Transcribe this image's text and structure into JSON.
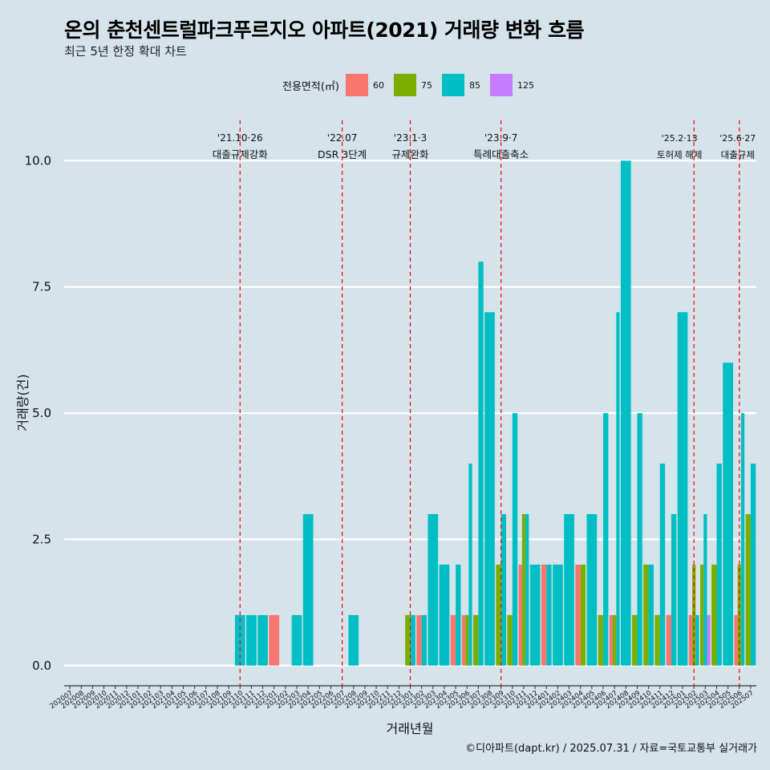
{
  "title": "온의 춘천센트럴파크푸르지오 아파트(2021) 거래량 변화 흐름",
  "subtitle": "최근 5년 한정 확대 차트",
  "caption": "©디아파트(dapt.kr) / 2025.07.31 / 자료=국토교통부 실거래가",
  "legend": {
    "title": "전용면적(㎡)",
    "items": [
      {
        "label": "60",
        "color": "#f8766d"
      },
      {
        "label": "75",
        "color": "#7cae00"
      },
      {
        "label": "85",
        "color": "#00bfc4"
      },
      {
        "label": "125",
        "color": "#c77cff"
      }
    ]
  },
  "chart_data": {
    "type": "bar",
    "xlabel": "거래년월",
    "ylabel": "거래량(건)",
    "ylim": [
      -0.4,
      10.8
    ],
    "yticks": [
      0,
      2.5,
      5,
      7.5,
      10
    ],
    "ytick_labels": [
      "0.0",
      "2.5",
      "5.0",
      "7.5",
      "10.0"
    ],
    "categories": [
      "202007",
      "202008",
      "202009",
      "202010",
      "202011",
      "202012",
      "202101",
      "202102",
      "202103",
      "202104",
      "202105",
      "202106",
      "202107",
      "202108",
      "202109",
      "202110",
      "202111",
      "202112",
      "202201",
      "202202",
      "202203",
      "202204",
      "202205",
      "202206",
      "202207",
      "202208",
      "202209",
      "202210",
      "202211",
      "202212",
      "202301",
      "202302",
      "202303",
      "202304",
      "202305",
      "202306",
      "202307",
      "202308",
      "202309",
      "202310",
      "202311",
      "202312",
      "202401",
      "202402",
      "202403",
      "202404",
      "202405",
      "202406",
      "202407",
      "202408",
      "202409",
      "202410",
      "202411",
      "202412",
      "202501",
      "202502",
      "202503",
      "202504",
      "202505",
      "202506",
      "202507"
    ],
    "series": [
      {
        "name": "60",
        "color": "#f8766d",
        "values": [
          0,
          0,
          0,
          0,
          0,
          0,
          0,
          0,
          0,
          0,
          0,
          0,
          0,
          0,
          0,
          0,
          0,
          0,
          1,
          0,
          0,
          0,
          0,
          0,
          0,
          0,
          0,
          0,
          0,
          0,
          0,
          1,
          0,
          0,
          1,
          1,
          0,
          0,
          0,
          0,
          2,
          0,
          2,
          0,
          0,
          2,
          0,
          0,
          1,
          0,
          0,
          0,
          0,
          1,
          0,
          1,
          0,
          0,
          0,
          1,
          0
        ]
      },
      {
        "name": "75",
        "color": "#7cae00",
        "values": [
          0,
          0,
          0,
          0,
          0,
          0,
          0,
          0,
          0,
          0,
          0,
          0,
          0,
          0,
          0,
          0,
          0,
          0,
          0,
          0,
          0,
          0,
          0,
          0,
          0,
          0,
          0,
          0,
          0,
          0,
          1,
          0,
          0,
          0,
          0,
          1,
          1,
          0,
          2,
          1,
          3,
          0,
          0,
          0,
          0,
          2,
          0,
          1,
          1,
          0,
          1,
          2,
          1,
          0,
          0,
          2,
          2,
          2,
          0,
          2,
          3
        ]
      },
      {
        "name": "85",
        "color": "#00bfc4",
        "values": [
          0,
          0,
          0,
          0,
          0,
          0,
          0,
          0,
          0,
          0,
          0,
          0,
          0,
          0,
          0,
          1,
          1,
          1,
          0,
          0,
          1,
          3,
          0,
          0,
          0,
          1,
          0,
          0,
          0,
          0,
          1,
          1,
          3,
          2,
          2,
          4,
          8,
          7,
          3,
          5,
          3,
          2,
          2,
          2,
          3,
          0,
          3,
          5,
          7,
          10,
          5,
          2,
          4,
          3,
          7,
          1,
          3,
          4,
          6,
          5,
          4
        ]
      },
      {
        "name": "125",
        "color": "#c77cff",
        "values": [
          0,
          0,
          0,
          0,
          0,
          0,
          0,
          0,
          0,
          0,
          0,
          0,
          0,
          0,
          0,
          0,
          0,
          0,
          0,
          0,
          0,
          0,
          0,
          0,
          0,
          0,
          0,
          0,
          0,
          0,
          0,
          0,
          0,
          0,
          0,
          0,
          0,
          0,
          0,
          0,
          0,
          0,
          0,
          0,
          0,
          0,
          0,
          0,
          0,
          0,
          0,
          0,
          0,
          0,
          0,
          0,
          1,
          0,
          0,
          0,
          0
        ]
      }
    ],
    "events": [
      {
        "at": "202110",
        "date": "'21.10·26",
        "label": "대출규제강화"
      },
      {
        "at": "202207",
        "date": "'22.07",
        "label": "DSR 3단계"
      },
      {
        "at": "202301",
        "date": "'23.1·3",
        "label": "규제완화"
      },
      {
        "at": "202309",
        "date": "'23.9·7",
        "label": "특례대출축소"
      },
      {
        "at": "202502",
        "date": "'25.2·13",
        "label": "토허제 해제"
      },
      {
        "at": "202506",
        "date": "'25.6·27",
        "label": "대출규제"
      }
    ],
    "grid": true,
    "legend_position": "top"
  }
}
